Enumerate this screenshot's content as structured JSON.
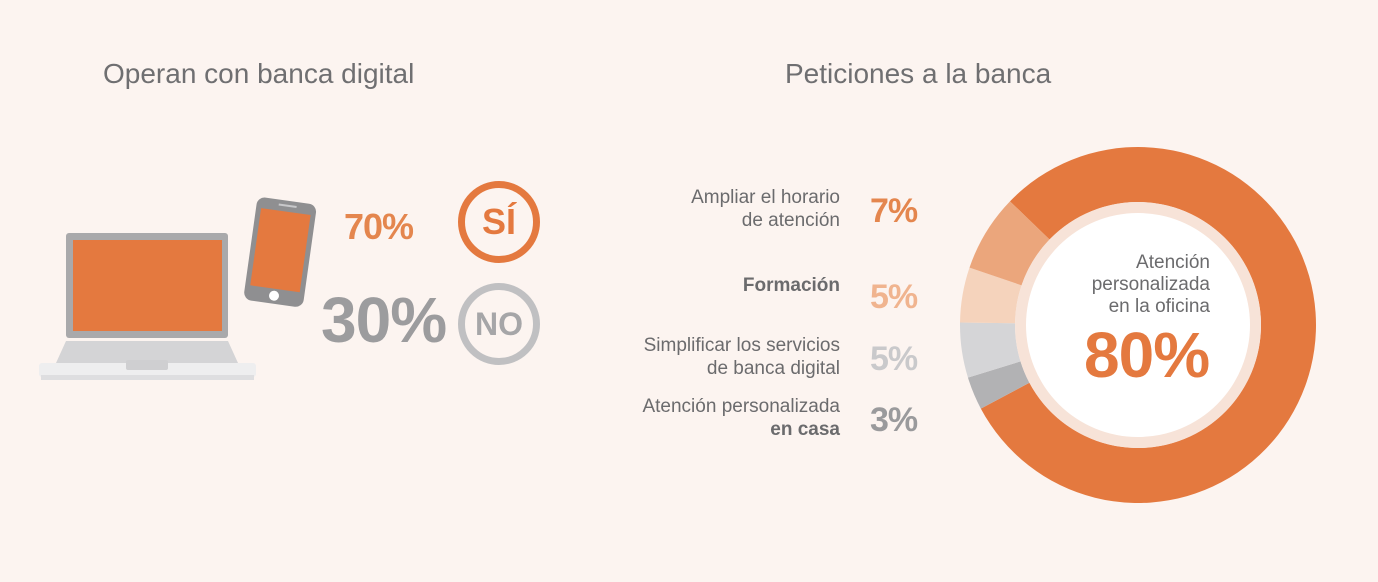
{
  "left": {
    "title": "Operan con banca digital",
    "yes": {
      "value": "70%",
      "label": "SÍ",
      "color": "#e4793f"
    },
    "no": {
      "value": "30%",
      "label": "NO",
      "color": "#9c9c9e",
      "badge_color": "#c0c0c2"
    },
    "icons": [
      "laptop-icon",
      "smartphone-icon"
    ]
  },
  "right": {
    "title": "Peticiones a la banca",
    "center_label": [
      "Atención",
      "personalizada",
      "en la oficina"
    ],
    "center_value": "80%",
    "legend": [
      {
        "label_lines": [
          "Ampliar el horario",
          "de atención"
        ],
        "value": "7%",
        "color": "#e4864e"
      },
      {
        "label_lines": [
          "Formación",
          ""
        ],
        "value": "5%",
        "color": "#f0b48f"
      },
      {
        "label_lines": [
          "Simplificar los servicios",
          "de banca digital"
        ],
        "value": "5%",
        "color": "#c9c9cb"
      },
      {
        "label_lines": [
          "Atención personalizada",
          "en casa"
        ],
        "value": "3%",
        "color": "#9a9a9c"
      }
    ]
  },
  "chart_data": {
    "type": "pie",
    "variant": "donut",
    "categories": [
      "Atención personalizada en la oficina",
      "Atención personalizada en casa",
      "Simplificar los servicios de banca digital",
      "Formación",
      "Ampliar el horario de atención"
    ],
    "values": [
      80,
      3,
      5,
      5,
      7
    ],
    "colors": [
      "#e4793f",
      "#b2b2b4",
      "#d5d5d7",
      "#f5d3bc",
      "#eba67c"
    ],
    "unit": "%"
  }
}
